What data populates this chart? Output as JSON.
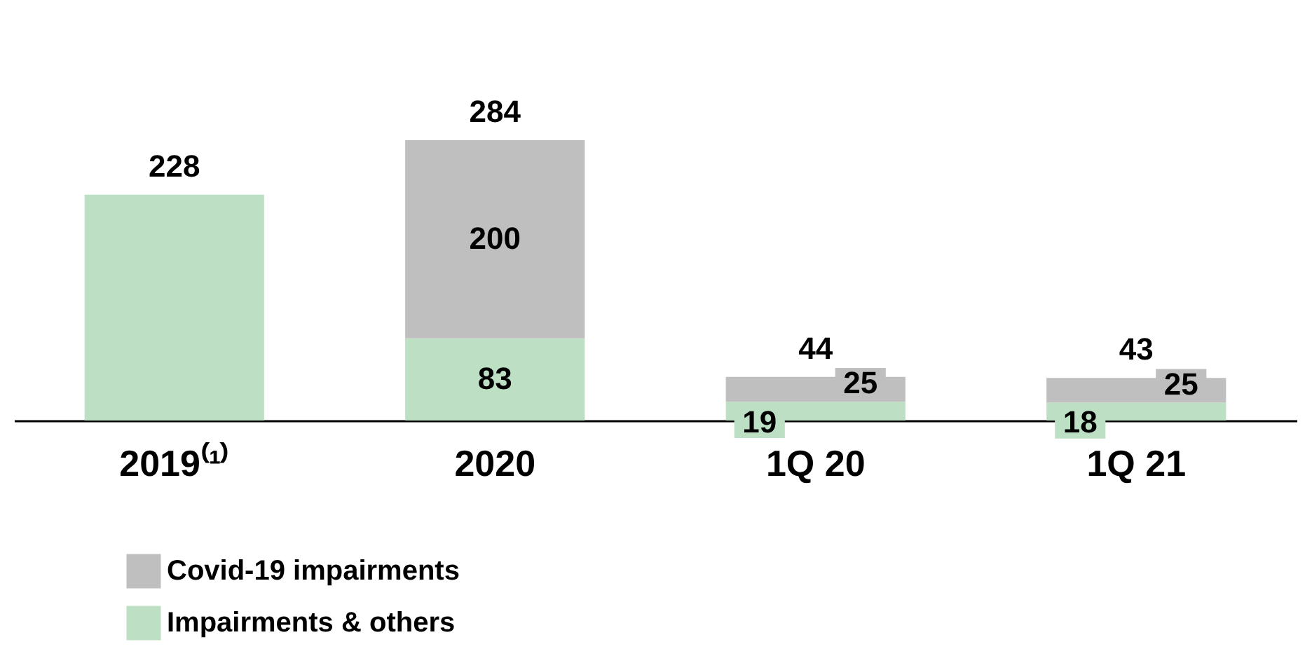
{
  "chart_data": {
    "type": "bar",
    "stacked": true,
    "categories": [
      "2019⁽¹⁾",
      "2020",
      "1Q 20",
      "1Q 21"
    ],
    "series": [
      {
        "name": "Impairments & others",
        "color": "#bde0c5",
        "values": [
          228,
          83,
          19,
          18
        ],
        "value_labels": [
          null,
          "83",
          "19",
          "18"
        ]
      },
      {
        "name": "Covid-19 impairments",
        "color": "#bfbfbf",
        "values": [
          null,
          200,
          25,
          25
        ],
        "value_labels": [
          null,
          "200",
          "25",
          "25"
        ]
      }
    ],
    "totals": [
      "228",
      "284",
      "44",
      "43"
    ],
    "legend": "bottom left",
    "grid": false
  }
}
